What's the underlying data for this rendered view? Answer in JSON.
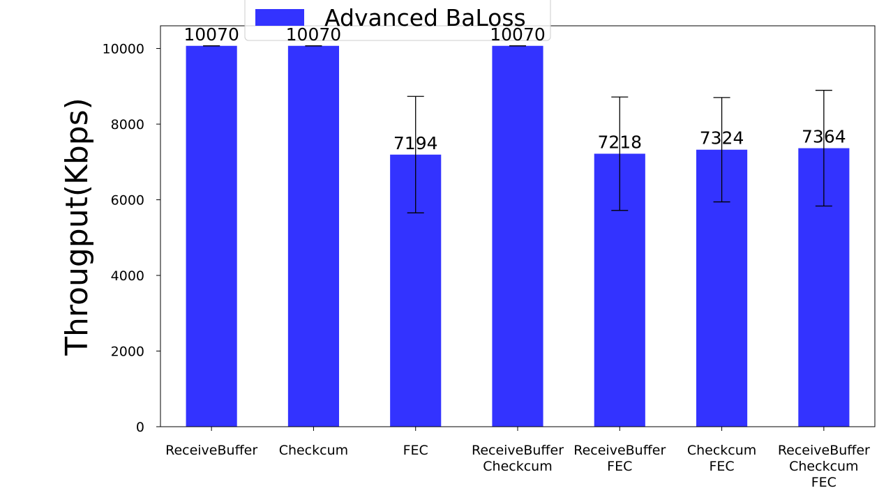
{
  "chart_data": {
    "type": "bar",
    "title": "",
    "xlabel": "",
    "ylabel": "Througput(Kbps)",
    "ylim": [
      0,
      10600
    ],
    "yticks": [
      0,
      2000,
      4000,
      6000,
      8000,
      10000
    ],
    "grid": false,
    "legend_position": "top-center",
    "categories": [
      [
        "ReceiveBuffer"
      ],
      [
        "Checkcum"
      ],
      [
        "FEC"
      ],
      [
        "ReceiveBuffer",
        "Checkcum"
      ],
      [
        "ReceiveBuffer",
        "FEC"
      ],
      [
        "Checkcum",
        "FEC"
      ],
      [
        "ReceiveBuffer",
        "Checkcum",
        "FEC"
      ]
    ],
    "series": [
      {
        "name": "Advanced BaLoss",
        "color": "#3333ff",
        "values": [
          10070,
          10070,
          7194,
          10070,
          7218,
          7324,
          7364
        ],
        "error": [
          0,
          0,
          1540,
          0,
          1500,
          1380,
          1530
        ],
        "labels": [
          "10070",
          "10070",
          "7194",
          "10070",
          "7218",
          "7324",
          "7364"
        ]
      }
    ]
  }
}
